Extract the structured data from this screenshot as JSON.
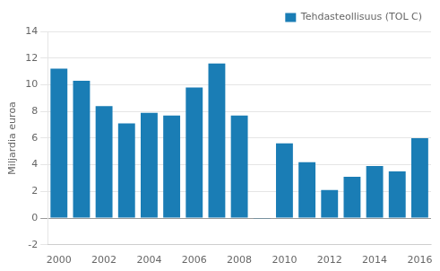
{
  "chart_data": {
    "type": "bar",
    "ylabel": "Miljardia euroa",
    "categories": [
      2000,
      null,
      2002,
      null,
      2004,
      null,
      2006,
      null,
      2008,
      null,
      2010,
      null,
      2012,
      null,
      2014,
      null,
      2016
    ],
    "series": [
      {
        "name": "Tehdasteollisuus (TOL C)",
        "color": "#1a7db5",
        "values": [
          11.2,
          10.3,
          8.4,
          7.1,
          7.9,
          7.7,
          9.8,
          11.6,
          7.7,
          -0.05,
          5.6,
          4.2,
          2.1,
          3.1,
          3.9,
          3.5,
          6.0
        ]
      }
    ],
    "ylim": [
      -2,
      14
    ],
    "yticks": [
      -2,
      0,
      2,
      4,
      6,
      8,
      10,
      12,
      14
    ],
    "grid": true,
    "legend": "upper-right"
  }
}
